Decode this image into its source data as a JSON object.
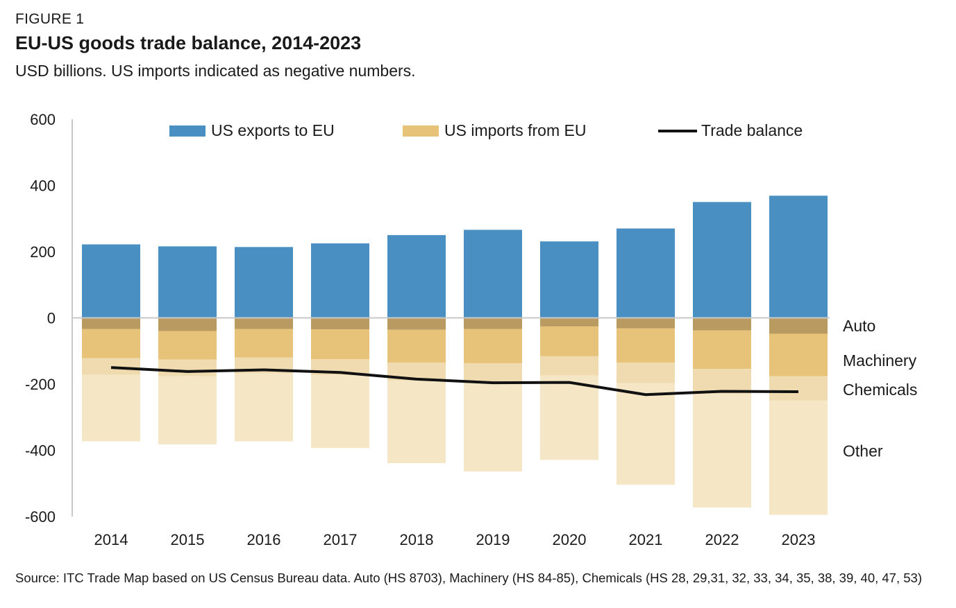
{
  "figure_label": "FIGURE 1",
  "title": "EU-US goods trade balance, 2014-2023",
  "subtitle": "USD billions. US imports indicated as negative numbers.",
  "source": "Source: ITC Trade Map based on US Census Bureau data. Auto (HS 8703), Machinery (HS 84-85), Chemicals (HS 28, 29,31, 32, 33, 34, 35, 38, 39, 40, 47, 53)",
  "colors": {
    "exports": "#4a8fc2",
    "auto": "#b99a60",
    "machinery": "#e7c37a",
    "chemicals": "#f0dbb0",
    "other": "#f5e6c6",
    "balance": "#111111",
    "axis": "#c8c8c8"
  },
  "chart_data": {
    "type": "bar",
    "stacked": true,
    "categories": [
      "2014",
      "2015",
      "2016",
      "2017",
      "2018",
      "2019",
      "2020",
      "2021",
      "2022",
      "2023"
    ],
    "ylim": [
      -600,
      600
    ],
    "yticks": [
      600,
      400,
      200,
      0,
      -200,
      -400,
      -600
    ],
    "ytick_labels": [
      "600",
      "400",
      "200",
      "0",
      "-200",
      "-400",
      "-600"
    ],
    "legend": {
      "exports": "US exports to EU",
      "imports": "US imports from EU",
      "balance": "Trade balance"
    },
    "segment_labels": {
      "auto": "Auto",
      "machinery": "Machinery",
      "chemicals": "Chemicals",
      "other": "Other"
    },
    "series": [
      {
        "name": "US exports to EU",
        "key": "exports",
        "values": [
          222,
          216,
          214,
          225,
          250,
          266,
          231,
          270,
          350,
          369
        ]
      },
      {
        "name": "Auto",
        "key": "auto",
        "values": [
          -34,
          -40,
          -34,
          -35,
          -36,
          -34,
          -26,
          -32,
          -38,
          -48
        ]
      },
      {
        "name": "Machinery",
        "key": "machinery",
        "values": [
          -88,
          -86,
          -86,
          -90,
          -99,
          -103,
          -90,
          -103,
          -116,
          -128
        ]
      },
      {
        "name": "Chemicals",
        "key": "chemicals",
        "values": [
          -50,
          -50,
          -48,
          -48,
          -55,
          -60,
          -58,
          -62,
          -76,
          -74
        ]
      },
      {
        "name": "Other",
        "key": "other",
        "values": [
          -201,
          -206,
          -205,
          -220,
          -249,
          -267,
          -255,
          -307,
          -343,
          -345
        ]
      }
    ],
    "balance": {
      "name": "Trade balance",
      "values": [
        -150,
        -162,
        -157,
        -165,
        -185,
        -196,
        -195,
        -232,
        -222,
        -223
      ]
    }
  }
}
